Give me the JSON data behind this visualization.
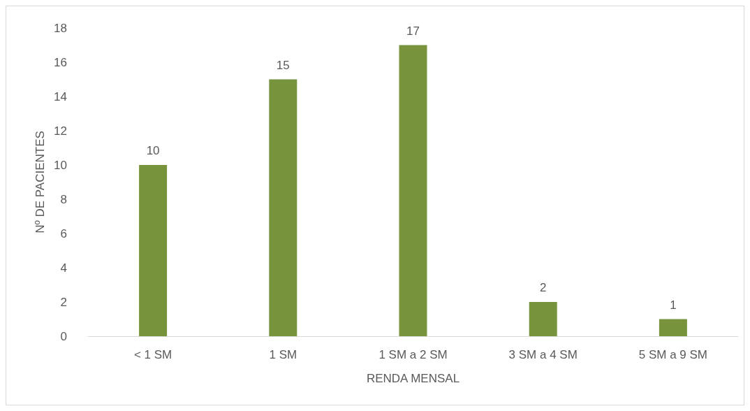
{
  "chart_data": {
    "type": "bar",
    "xlabel": "RENDA MENSAL",
    "ylabel": "Nº DE PACIENTES",
    "categories": [
      "< 1 SM",
      "1 SM",
      "1 SM a 2 SM",
      "3 SM a 4 SM",
      "5 SM a 9 SM"
    ],
    "values": [
      10,
      15,
      17,
      2,
      1
    ],
    "color": "#77933c",
    "ylim": [
      0,
      18
    ],
    "yticks": [
      0,
      2,
      4,
      6,
      8,
      10,
      12,
      14,
      16,
      18
    ],
    "grid": false,
    "data_labels": true
  }
}
